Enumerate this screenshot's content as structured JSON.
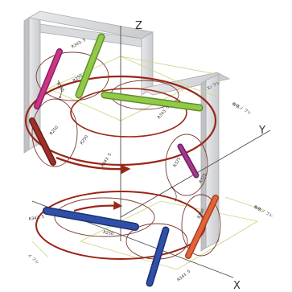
{
  "axes": {
    "z": "Z",
    "y": "Y",
    "x": "X"
  },
  "annotations": {
    "top_right": "エ/ フレ",
    "upper_right": "骨格ノ フレ",
    "lower_right": "骨格ノ フレ",
    "lower_left": "イ フレ"
  },
  "dimension_labels": {
    "r343_top": "R343. 5",
    "r325": "R325",
    "r250": "R250",
    "r343_mid": "R343. 5",
    "r250_left": "R250",
    "r250_right": "R250",
    "r343_right": "R343. 5",
    "r325_right": "R325",
    "r250_right2": "R250",
    "r343_bottom_left": "R343. 5",
    "r250_bottom": "R250",
    "r343_bottom": "R343. 5",
    "r325_bottom": "R325"
  },
  "colors": {
    "frame": "#d6d7da",
    "frame_edge": "#a9acb0",
    "orbit": "#9a2616",
    "orbit_thin": "#7b3b35",
    "axis": "#4b4b4b",
    "guide": "#c9d67a",
    "green": "#93c94a",
    "magenta": "#c93587",
    "red": "#9f2f2a",
    "purple": "#a03a8e",
    "orange": "#e4643a",
    "blue": "#2f4fa8"
  }
}
